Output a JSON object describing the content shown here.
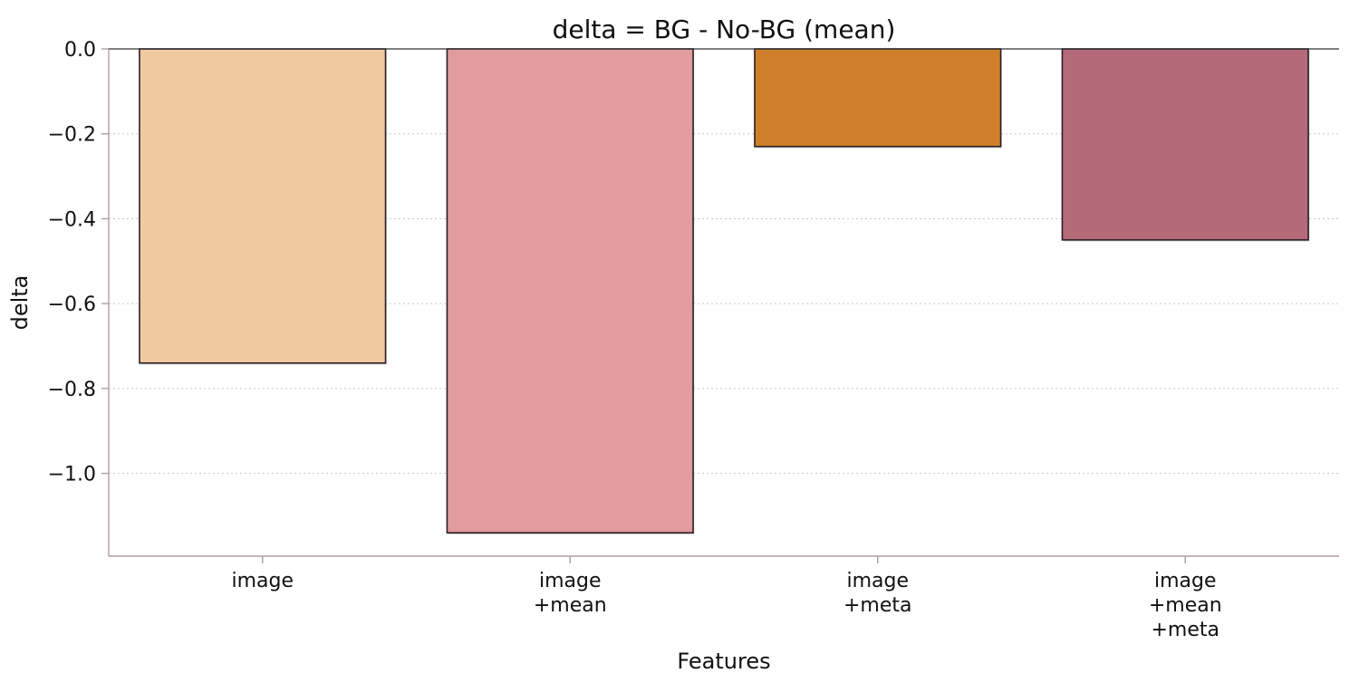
{
  "chart_data": {
    "type": "bar",
    "title": "delta = BG - No-BG (mean)",
    "xlabel": "Features",
    "ylabel": "delta",
    "categories": [
      [
        "image"
      ],
      [
        "image",
        "+mean"
      ],
      [
        "image",
        "+meta"
      ],
      [
        "image",
        "+mean",
        "+meta"
      ]
    ],
    "values": [
      -0.74,
      -1.14,
      -0.23,
      -0.45
    ],
    "colors": [
      "#f0c9a0",
      "#e29b9e",
      "#cf7e2a",
      "#b56a7a"
    ],
    "bar_edge_color": "#2b2024",
    "ylim": [
      -1.195,
      0.0
    ],
    "yticks": [
      0.0,
      -0.2,
      -0.4,
      -0.6,
      -0.8,
      -1.0
    ],
    "ytick_labels": [
      "0.0",
      "−0.2",
      "−0.4",
      "−0.6",
      "−0.8",
      "−1.0"
    ],
    "grid": "horizontal-dotted",
    "legend": "none"
  }
}
